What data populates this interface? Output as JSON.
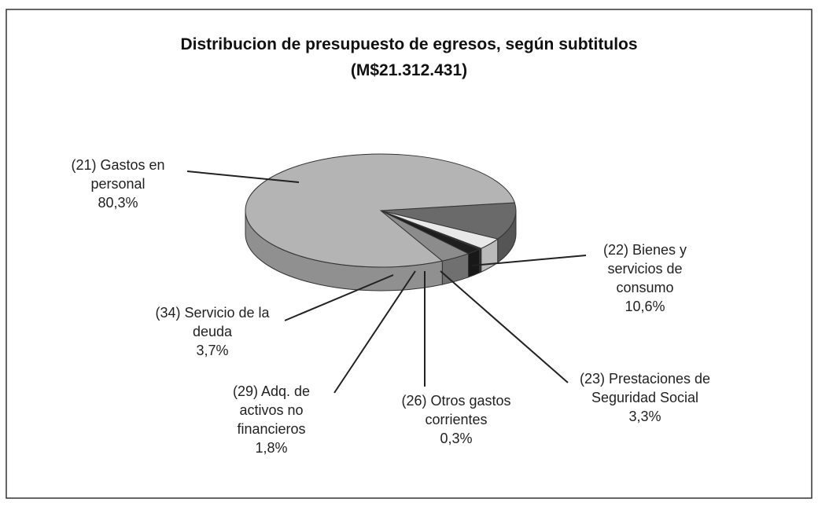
{
  "chart_data": {
    "type": "pie",
    "title": "Distribucion de presupuesto de egresos, según subtitulos",
    "subtitle": "(M$21.312.431)",
    "categories": [
      "(21) Gastos en personal",
      "(22) Bienes y servicios de consumo",
      "(23) Prestaciones de Seguridad Social",
      "(26) Otros gastos corrientes",
      "(29) Adq. de activos no financieros",
      "(34) Servicio de la deuda"
    ],
    "values": [
      80.3,
      10.6,
      3.3,
      0.3,
      1.8,
      3.7
    ],
    "value_labels": [
      "80,3%",
      "10,6%",
      "3,3%",
      "0,3%",
      "1,8%",
      "3,7%"
    ],
    "colors": [
      "#b4b4b4",
      "#6a6a6a",
      "#e8e8e8",
      "#3a3a3a",
      "#1e1e1e",
      "#8c8c8c"
    ]
  }
}
